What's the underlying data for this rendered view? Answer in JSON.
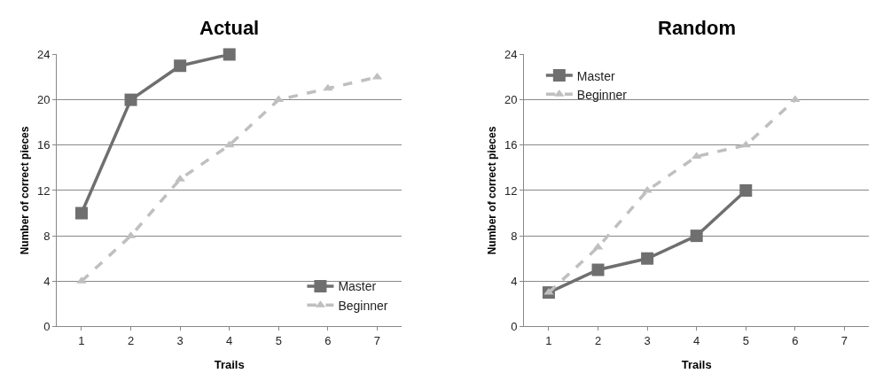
{
  "chart_data": [
    {
      "type": "line",
      "title": "Actual",
      "xlabel": "Trails",
      "ylabel": "Number of correct pieces",
      "categories": [
        "1",
        "2",
        "3",
        "4",
        "5",
        "6",
        "7"
      ],
      "ylim": [
        0,
        24
      ],
      "yticks": [
        0,
        4,
        8,
        12,
        16,
        20,
        24
      ],
      "grid": "y",
      "legend": "bottom right",
      "series": [
        {
          "name": "Master",
          "color": "#6f6f6f",
          "marker": "square",
          "line_style": "solid",
          "values": [
            10,
            20,
            23,
            24,
            null,
            null,
            null
          ]
        },
        {
          "name": "Beginner",
          "color": "#bfbfbf",
          "marker": "triangle",
          "line_style": "dashed",
          "values": [
            4,
            8,
            13,
            16,
            20,
            21,
            22
          ]
        }
      ]
    },
    {
      "type": "line",
      "title": "Random",
      "xlabel": "Trails",
      "ylabel": "Number of correct pieces",
      "categories": [
        "1",
        "2",
        "3",
        "4",
        "5",
        "6",
        "7"
      ],
      "ylim": [
        0,
        24
      ],
      "yticks": [
        0,
        4,
        8,
        12,
        16,
        20,
        24
      ],
      "grid": "y",
      "legend": "top left",
      "series": [
        {
          "name": "Master",
          "color": "#6f6f6f",
          "marker": "square",
          "line_style": "solid",
          "values": [
            3,
            5,
            6,
            8,
            12,
            null,
            null
          ]
        },
        {
          "name": "Beginner",
          "color": "#bfbfbf",
          "marker": "triangle",
          "line_style": "dashed",
          "values": [
            3,
            7,
            12,
            15,
            16,
            20,
            null
          ]
        }
      ]
    }
  ]
}
